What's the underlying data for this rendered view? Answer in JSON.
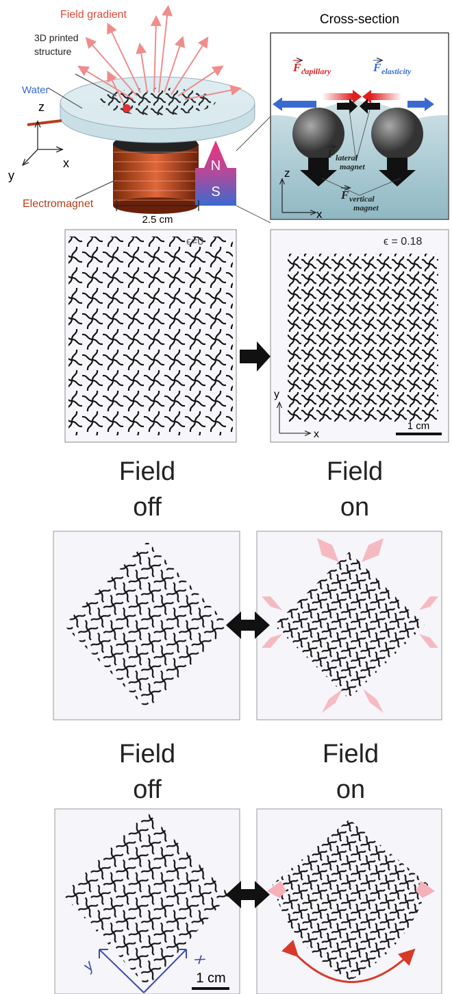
{
  "schematic": {
    "field_gradient": "Field gradient",
    "structure": [
      "3D printed",
      "structure"
    ],
    "water": "Water",
    "axes": {
      "z": "z",
      "x": "x",
      "y": "y"
    },
    "electromagnet": "Electromagnet",
    "scale": "2.5 cm",
    "north": "N",
    "south": "S"
  },
  "cross_section": {
    "title": "Cross-section",
    "forces": [
      {
        "symbol": "F",
        "subscript": [
          "capillary"
        ]
      },
      {
        "symbol": "F",
        "subscript": [
          "elasticity"
        ]
      },
      {
        "symbol": "F",
        "subscript": [
          "lateral",
          "magnet"
        ]
      },
      {
        "symbol": "F",
        "subscript": [
          "vertical",
          "magnet"
        ]
      }
    ],
    "axes": {
      "z": "z",
      "x": "x"
    }
  },
  "strain": {
    "before": "ϵ=0",
    "after": "ϵ = 0.18",
    "axes": {
      "y": "y",
      "x": "x"
    },
    "scale": "1 cm"
  },
  "isotropic": {
    "off": [
      "Field",
      "off"
    ],
    "on": [
      "Field",
      "on"
    ]
  },
  "bending": {
    "off": [
      "Field",
      "off"
    ],
    "on": [
      "Field",
      "on"
    ],
    "axes": {
      "y": "y",
      "x": "x"
    },
    "scale": "1 cm"
  }
}
